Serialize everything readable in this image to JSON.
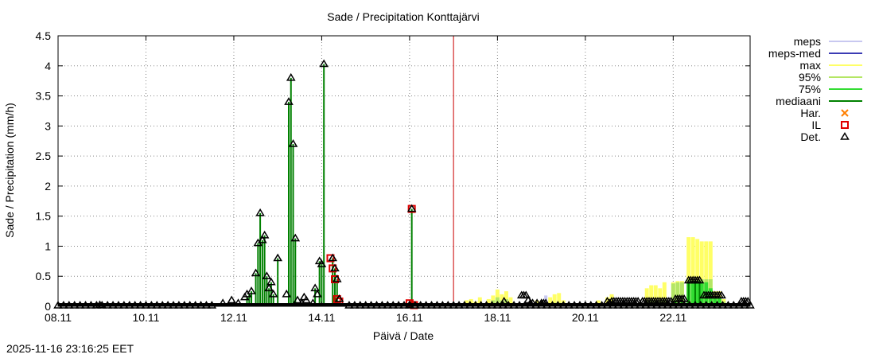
{
  "chart_data": {
    "type": "bar",
    "title": "Sade / Precipitation  Konttajärvi",
    "xlabel": "Päivä / Date",
    "ylabel": "Sade / Precipitation (mm/h)",
    "ylim": [
      0,
      4.5
    ],
    "yticks": [
      "0",
      "0.5",
      "1",
      "1.5",
      "2",
      "2.5",
      "3",
      "3.5",
      "4",
      "4.5"
    ],
    "xlim": [
      0,
      15.75
    ],
    "xticks": [
      {
        "day": 0,
        "label": "08.11"
      },
      {
        "day": 2,
        "label": "10.11"
      },
      {
        "day": 4,
        "label": "12.11"
      },
      {
        "day": 6,
        "label": "14.11"
      },
      {
        "day": 8,
        "label": "16.11"
      },
      {
        "day": 10,
        "label": "18.11"
      },
      {
        "day": 12,
        "label": "20.11"
      },
      {
        "day": 14,
        "label": "22.11"
      }
    ],
    "grid": true,
    "legend_position": "right",
    "now_day": 9.0,
    "colors": {
      "meps": "#c8c8f0",
      "meps_med": "#3c3cb4",
      "max": "#ffff66",
      "p95": "#b4e664",
      "p75": "#32dc32",
      "mediaani": "#008000",
      "har": "#ff7f00",
      "il": "#e00000",
      "det": "#000000",
      "now_line": "#cc0000"
    },
    "legend": [
      {
        "key": "meps",
        "label": "meps",
        "style": "line"
      },
      {
        "key": "meps_med",
        "label": "meps-med",
        "style": "line"
      },
      {
        "key": "max",
        "label": "max",
        "style": "line"
      },
      {
        "key": "p95",
        "label": "95%",
        "style": "line"
      },
      {
        "key": "p75",
        "label": "75%",
        "style": "line"
      },
      {
        "key": "mediaani",
        "label": "mediaani",
        "style": "line"
      },
      {
        "key": "har",
        "label": "Har.",
        "style": "cross"
      },
      {
        "key": "il",
        "label": "IL",
        "style": "square"
      },
      {
        "key": "det",
        "label": "Det.",
        "style": "triangle"
      }
    ],
    "det_zero_range": [
      0,
      15.75
    ],
    "det_points": [
      [
        0.95,
        0.02
      ],
      [
        3.75,
        0.05
      ],
      [
        3.95,
        0.1
      ],
      [
        4.1,
        0.05
      ],
      [
        4.25,
        0.15
      ],
      [
        4.3,
        0.2
      ],
      [
        4.4,
        0.25
      ],
      [
        4.5,
        0.55
      ],
      [
        4.55,
        1.05
      ],
      [
        4.6,
        1.55
      ],
      [
        4.65,
        1.1
      ],
      [
        4.7,
        1.18
      ],
      [
        4.75,
        0.5
      ],
      [
        4.8,
        0.3
      ],
      [
        4.85,
        0.4
      ],
      [
        4.9,
        0.2
      ],
      [
        5.0,
        0.8
      ],
      [
        5.2,
        0.2
      ],
      [
        5.25,
        3.4
      ],
      [
        5.3,
        3.8
      ],
      [
        5.35,
        2.7
      ],
      [
        5.4,
        1.13
      ],
      [
        5.45,
        0.1
      ],
      [
        5.55,
        0.05
      ],
      [
        5.6,
        0.15
      ],
      [
        5.65,
        0.1
      ],
      [
        5.8,
        0.05
      ],
      [
        5.85,
        0.3
      ],
      [
        5.9,
        0.2
      ],
      [
        5.95,
        0.75
      ],
      [
        6.0,
        0.7
      ],
      [
        6.05,
        4.03
      ],
      [
        6.25,
        0.8
      ],
      [
        6.3,
        0.63
      ],
      [
        6.35,
        0.45
      ],
      [
        6.4,
        0.12
      ],
      [
        8.05,
        1.62
      ],
      [
        8.0,
        0.02
      ],
      [
        10.15,
        0.08
      ],
      [
        12.5,
        0.08
      ],
      [
        12.55,
        0.05
      ],
      [
        12.6,
        0.08
      ],
      [
        12.65,
        0.08
      ],
      [
        12.7,
        0.08
      ],
      [
        12.75,
        0.08
      ],
      [
        12.8,
        0.08
      ],
      [
        12.85,
        0.08
      ],
      [
        12.9,
        0.08
      ],
      [
        12.95,
        0.08
      ],
      [
        13.0,
        0.08
      ],
      [
        13.05,
        0.08
      ],
      [
        13.1,
        0.08
      ],
      [
        13.15,
        0.08
      ],
      [
        13.2,
        0.08
      ],
      [
        13.3,
        0.08
      ],
      [
        13.35,
        0.08
      ],
      [
        13.4,
        0.08
      ],
      [
        13.45,
        0.08
      ],
      [
        13.5,
        0.08
      ],
      [
        13.55,
        0.08
      ],
      [
        13.6,
        0.08
      ],
      [
        13.65,
        0.08
      ],
      [
        13.7,
        0.08
      ],
      [
        13.75,
        0.08
      ],
      [
        13.8,
        0.08
      ],
      [
        13.85,
        0.08
      ],
      [
        13.9,
        0.08
      ],
      [
        13.95,
        0.08
      ],
      [
        14.05,
        0.12
      ],
      [
        14.1,
        0.12
      ],
      [
        14.15,
        0.12
      ],
      [
        14.2,
        0.12
      ],
      [
        14.25,
        0.12
      ],
      [
        14.35,
        0.43
      ],
      [
        14.4,
        0.43
      ],
      [
        14.45,
        0.43
      ],
      [
        14.5,
        0.43
      ],
      [
        14.55,
        0.43
      ],
      [
        14.6,
        0.43
      ],
      [
        14.7,
        0.18
      ],
      [
        14.75,
        0.18
      ],
      [
        14.8,
        0.18
      ],
      [
        14.85,
        0.18
      ],
      [
        14.9,
        0.18
      ],
      [
        14.95,
        0.18
      ],
      [
        15.0,
        0.18
      ],
      [
        15.05,
        0.18
      ],
      [
        15.1,
        0.18
      ],
      [
        15.55,
        0.08
      ],
      [
        15.6,
        0.08
      ],
      [
        15.65,
        0.08
      ],
      [
        15.7,
        0.08
      ],
      [
        10.55,
        0.18
      ],
      [
        10.6,
        0.18
      ],
      [
        10.65,
        0.18
      ],
      [
        10.7,
        0.1
      ],
      [
        10.75,
        0.05
      ],
      [
        10.8,
        0.05
      ],
      [
        10.9,
        0.05
      ],
      [
        11.0,
        0.05
      ],
      [
        11.05,
        0.05
      ],
      [
        11.1,
        0.05
      ]
    ],
    "il_points": [
      [
        6.2,
        0.8
      ],
      [
        6.25,
        0.63
      ],
      [
        6.3,
        0.45
      ],
      [
        6.35,
        0.12
      ],
      [
        6.4,
        0.08
      ],
      [
        8.05,
        1.62
      ],
      [
        8.0,
        0.05
      ],
      [
        8.1,
        0.02
      ],
      [
        9.0,
        0.01
      ],
      [
        9.5,
        0.0
      ],
      [
        10.0,
        0.0
      ]
    ],
    "il_zero_range": [
      6.3,
      10.0
    ],
    "mediaani_bars": [
      [
        4.5,
        0.55
      ],
      [
        4.55,
        1.05
      ],
      [
        4.6,
        1.55
      ],
      [
        4.65,
        1.1
      ],
      [
        4.7,
        1.18
      ],
      [
        4.75,
        0.5
      ],
      [
        4.35,
        0.2
      ],
      [
        4.4,
        0.25
      ],
      [
        4.3,
        0.15
      ],
      [
        4.8,
        0.3
      ],
      [
        4.85,
        0.4
      ],
      [
        4.9,
        0.2
      ],
      [
        5.0,
        0.8
      ],
      [
        5.25,
        3.4
      ],
      [
        5.3,
        3.8
      ],
      [
        5.35,
        2.7
      ],
      [
        5.4,
        1.13
      ],
      [
        5.95,
        0.75
      ],
      [
        6.0,
        0.7
      ],
      [
        6.05,
        4.03
      ],
      [
        6.25,
        0.8
      ],
      [
        6.3,
        0.63
      ],
      [
        6.35,
        0.45
      ],
      [
        8.05,
        1.62
      ],
      [
        5.85,
        0.3
      ],
      [
        14.05,
        0.1
      ],
      [
        14.2,
        0.1
      ],
      [
        14.35,
        0.43
      ],
      [
        14.5,
        0.43
      ],
      [
        14.6,
        0.43
      ]
    ],
    "ensemble": [
      {
        "day": 9.2,
        "max": 0.05,
        "p95": 0.02
      },
      {
        "day": 9.3,
        "max": 0.1,
        "p95": 0.03
      },
      {
        "day": 9.4,
        "max": 0.12,
        "p95": 0.04
      },
      {
        "day": 9.5,
        "max": 0.08,
        "p95": 0.03
      },
      {
        "day": 9.6,
        "max": 0.15,
        "p95": 0.05
      },
      {
        "day": 9.8,
        "max": 0.12,
        "p95": 0.05
      },
      {
        "day": 9.9,
        "max": 0.18,
        "p95": 0.1
      },
      {
        "day": 10.0,
        "max": 0.28,
        "p95": 0.15
      },
      {
        "day": 10.1,
        "max": 0.2,
        "p95": 0.1
      },
      {
        "day": 10.2,
        "max": 0.25,
        "p95": 0.12
      },
      {
        "day": 10.3,
        "max": 0.15,
        "p95": 0.05
      },
      {
        "day": 10.9,
        "max": 0.1,
        "p95": 0.03
      },
      {
        "day": 11.0,
        "max": 0.08,
        "p95": 0.02
      },
      {
        "day": 11.2,
        "max": 0.15,
        "p95": 0.04
      },
      {
        "day": 11.3,
        "max": 0.2,
        "p95": 0.06
      },
      {
        "day": 11.4,
        "max": 0.22,
        "p95": 0.06
      },
      {
        "day": 11.5,
        "max": 0.1,
        "p95": 0.03
      },
      {
        "day": 12.3,
        "max": 0.1,
        "p95": 0.03
      },
      {
        "day": 12.5,
        "max": 0.15,
        "p95": 0.05
      },
      {
        "day": 12.6,
        "max": 0.2,
        "p95": 0.06
      },
      {
        "day": 13.4,
        "max": 0.3,
        "p95": 0.1
      },
      {
        "day": 13.5,
        "max": 0.35,
        "p95": 0.12
      },
      {
        "day": 13.6,
        "max": 0.35,
        "p95": 0.1
      },
      {
        "day": 13.7,
        "max": 0.3,
        "p95": 0.1
      },
      {
        "day": 13.8,
        "max": 0.4,
        "p95": 0.12
      },
      {
        "day": 14.0,
        "max": 0.4,
        "p95": 0.38
      },
      {
        "day": 14.1,
        "max": 0.42,
        "p95": 0.4
      },
      {
        "day": 14.2,
        "max": 0.42,
        "p95": 0.4
      },
      {
        "day": 14.35,
        "max": 1.15,
        "p95": 0.45
      },
      {
        "day": 14.45,
        "max": 1.15,
        "p95": 0.45
      },
      {
        "day": 14.55,
        "max": 1.12,
        "p95": 0.45
      },
      {
        "day": 14.65,
        "max": 1.08,
        "p95": 0.45
      },
      {
        "day": 14.75,
        "max": 1.08,
        "p95": 0.45
      },
      {
        "day": 14.85,
        "max": 1.08,
        "p95": 0.45
      },
      {
        "day": 14.95,
        "max": 0.25,
        "p95": 0.15
      },
      {
        "day": 15.05,
        "max": 0.25,
        "p95": 0.15
      },
      {
        "day": 15.15,
        "max": 0.12,
        "p95": 0.08
      }
    ],
    "p75_bars": [
      [
        14.0,
        0.06
      ],
      [
        14.1,
        0.06
      ],
      [
        14.2,
        0.06
      ],
      [
        14.35,
        0.4
      ],
      [
        14.45,
        0.4
      ],
      [
        14.55,
        0.4
      ],
      [
        14.65,
        0.4
      ],
      [
        14.75,
        0.4
      ],
      [
        14.85,
        0.3
      ],
      [
        14.95,
        0.15
      ],
      [
        15.05,
        0.15
      ],
      [
        10.0,
        0.05
      ],
      [
        10.1,
        0.04
      ]
    ],
    "meps_marks": [
      [
        11.1,
        0.18
      ]
    ]
  },
  "footer": {
    "timestamp": "2025-11-16 23:16:25 EET"
  }
}
